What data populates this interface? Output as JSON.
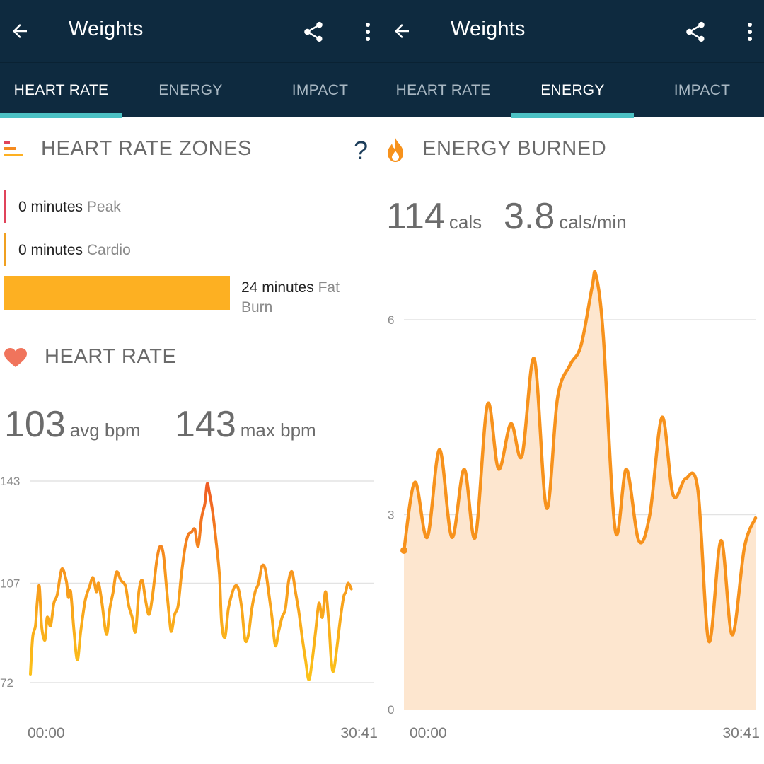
{
  "left": {
    "header": {
      "title": "Weights"
    },
    "tabs": [
      {
        "label": "HEART RATE",
        "active": true
      },
      {
        "label": "ENERGY",
        "active": false
      },
      {
        "label": "IMPACT",
        "active": false
      }
    ],
    "zones_title": "HEART RATE ZONES",
    "zones": [
      {
        "value": "0 minutes",
        "zone": "Peak",
        "color": "#e0435a",
        "fraction": 0
      },
      {
        "value": "0 minutes",
        "zone": "Cardio",
        "color": "#f0a020",
        "fraction": 0
      },
      {
        "value": "24 minutes",
        "zone": "Fat",
        "zone2": "Burn",
        "color": "#fdb022",
        "fraction": 1
      }
    ],
    "help_glyph": "?",
    "hr_title": "HEART RATE",
    "avg": {
      "value": "103",
      "unit": "avg bpm"
    },
    "max": {
      "value": "143",
      "unit": "max bpm"
    }
  },
  "right": {
    "header": {
      "title": "Weights"
    },
    "tabs": [
      {
        "label": "HEART RATE",
        "active": false
      },
      {
        "label": "ENERGY",
        "active": true
      },
      {
        "label": "IMPACT",
        "active": false
      }
    ],
    "energy_title": "ENERGY BURNED",
    "total": {
      "value": "114",
      "unit": "cals"
    },
    "rate": {
      "value": "3.8",
      "unit": "cals/min"
    }
  },
  "chart_data": [
    {
      "type": "line",
      "ylabel_ticks": [
        "143",
        "107",
        "72"
      ],
      "ylim": [
        72,
        143
      ],
      "x_ticks": [
        "00:00",
        "30:41"
      ],
      "x_unit": "minutes",
      "grid": true,
      "line_colors": {
        "low": "#fcc419",
        "mid": "#f7961d",
        "high": "#ef5a24"
      },
      "points": [
        [
          0.0,
          75
        ],
        [
          0.2,
          88
        ],
        [
          0.45,
          92
        ],
        [
          0.6,
          100
        ],
        [
          0.8,
          106
        ],
        [
          1.0,
          92
        ],
        [
          1.3,
          87
        ],
        [
          1.5,
          95
        ],
        [
          1.8,
          92
        ],
        [
          2.1,
          100
        ],
        [
          2.4,
          103
        ],
        [
          2.8,
          112
        ],
        [
          3.2,
          108
        ],
        [
          3.4,
          102
        ],
        [
          3.6,
          104
        ],
        [
          3.9,
          90
        ],
        [
          4.2,
          80
        ],
        [
          4.5,
          90
        ],
        [
          4.9,
          101
        ],
        [
          5.3,
          106
        ],
        [
          5.6,
          109
        ],
        [
          5.9,
          104
        ],
        [
          6.1,
          107
        ],
        [
          6.4,
          100
        ],
        [
          6.8,
          89
        ],
        [
          7.1,
          98
        ],
        [
          7.4,
          104
        ],
        [
          7.7,
          111
        ],
        [
          8.1,
          108
        ],
        [
          8.5,
          106
        ],
        [
          8.8,
          99
        ],
        [
          9.1,
          95
        ],
        [
          9.4,
          90
        ],
        [
          9.7,
          104
        ],
        [
          10.0,
          108
        ],
        [
          10.3,
          101
        ],
        [
          10.6,
          96
        ],
        [
          10.9,
          102
        ],
        [
          11.3,
          115
        ],
        [
          11.6,
          120
        ],
        [
          11.9,
          117
        ],
        [
          12.2,
          104
        ],
        [
          12.4,
          96
        ],
        [
          12.6,
          90
        ],
        [
          12.9,
          96
        ],
        [
          13.2,
          99
        ],
        [
          13.5,
          110
        ],
        [
          13.8,
          119
        ],
        [
          14.1,
          124
        ],
        [
          14.4,
          125
        ],
        [
          14.7,
          126
        ],
        [
          15.0,
          120
        ],
        [
          15.3,
          130
        ],
        [
          15.6,
          135
        ],
        [
          15.8,
          142
        ],
        [
          16.0,
          139
        ],
        [
          16.3,
          132
        ],
        [
          16.6,
          122
        ],
        [
          16.9,
          110
        ],
        [
          17.1,
          93
        ],
        [
          17.4,
          88
        ],
        [
          17.7,
          98
        ],
        [
          18.0,
          103
        ],
        [
          18.3,
          106
        ],
        [
          18.6,
          105
        ],
        [
          18.9,
          98
        ],
        [
          19.2,
          87
        ],
        [
          19.5,
          89
        ],
        [
          19.8,
          98
        ],
        [
          20.1,
          104
        ],
        [
          20.4,
          107
        ],
        [
          20.7,
          113
        ],
        [
          21.0,
          112
        ],
        [
          21.3,
          104
        ],
        [
          21.6,
          95
        ],
        [
          21.9,
          85
        ],
        [
          22.2,
          90
        ],
        [
          22.5,
          95
        ],
        [
          22.8,
          98
        ],
        [
          23.1,
          108
        ],
        [
          23.4,
          111
        ],
        [
          23.7,
          104
        ],
        [
          24.0,
          97
        ],
        [
          24.3,
          88
        ],
        [
          24.6,
          80
        ],
        [
          24.9,
          73
        ],
        [
          25.2,
          80
        ],
        [
          25.5,
          90
        ],
        [
          25.8,
          100
        ],
        [
          26.1,
          95
        ],
        [
          26.4,
          104
        ],
        [
          26.7,
          92
        ],
        [
          26.9,
          80
        ],
        [
          27.1,
          76
        ],
        [
          27.4,
          84
        ],
        [
          27.7,
          94
        ],
        [
          28.0,
          102
        ],
        [
          28.2,
          104
        ],
        [
          28.4,
          107
        ],
        [
          28.7,
          105
        ]
      ]
    },
    {
      "type": "area",
      "y_ticks": [
        "6",
        "3",
        "0"
      ],
      "ylim": [
        0,
        6.5
      ],
      "x_ticks": [
        "00:00",
        "30:41"
      ],
      "x_unit": "minutes",
      "grid": true,
      "line_color": "#f7921c",
      "fill_color": "#fde6cf",
      "points": [
        [
          0.0,
          2.45
        ],
        [
          0.9,
          3.5
        ],
        [
          1.9,
          2.65
        ],
        [
          2.9,
          4.0
        ],
        [
          3.9,
          2.65
        ],
        [
          4.9,
          3.7
        ],
        [
          5.8,
          2.65
        ],
        [
          6.8,
          4.7
        ],
        [
          7.7,
          3.7
        ],
        [
          8.7,
          4.4
        ],
        [
          9.6,
          3.9
        ],
        [
          10.6,
          5.4
        ],
        [
          11.6,
          3.1
        ],
        [
          12.5,
          4.8
        ],
        [
          13.5,
          5.3
        ],
        [
          14.4,
          5.6
        ],
        [
          15.3,
          6.5
        ],
        [
          15.6,
          6.7
        ],
        [
          16.2,
          5.8
        ],
        [
          17.2,
          2.75
        ],
        [
          18.1,
          3.7
        ],
        [
          19.1,
          2.6
        ],
        [
          20.0,
          3.0
        ],
        [
          21.0,
          4.5
        ],
        [
          21.9,
          3.3
        ],
        [
          22.9,
          3.55
        ],
        [
          23.9,
          3.4
        ],
        [
          24.8,
          1.05
        ],
        [
          25.8,
          2.6
        ],
        [
          26.7,
          1.15
        ],
        [
          27.7,
          2.5
        ],
        [
          28.6,
          2.95
        ]
      ]
    }
  ]
}
